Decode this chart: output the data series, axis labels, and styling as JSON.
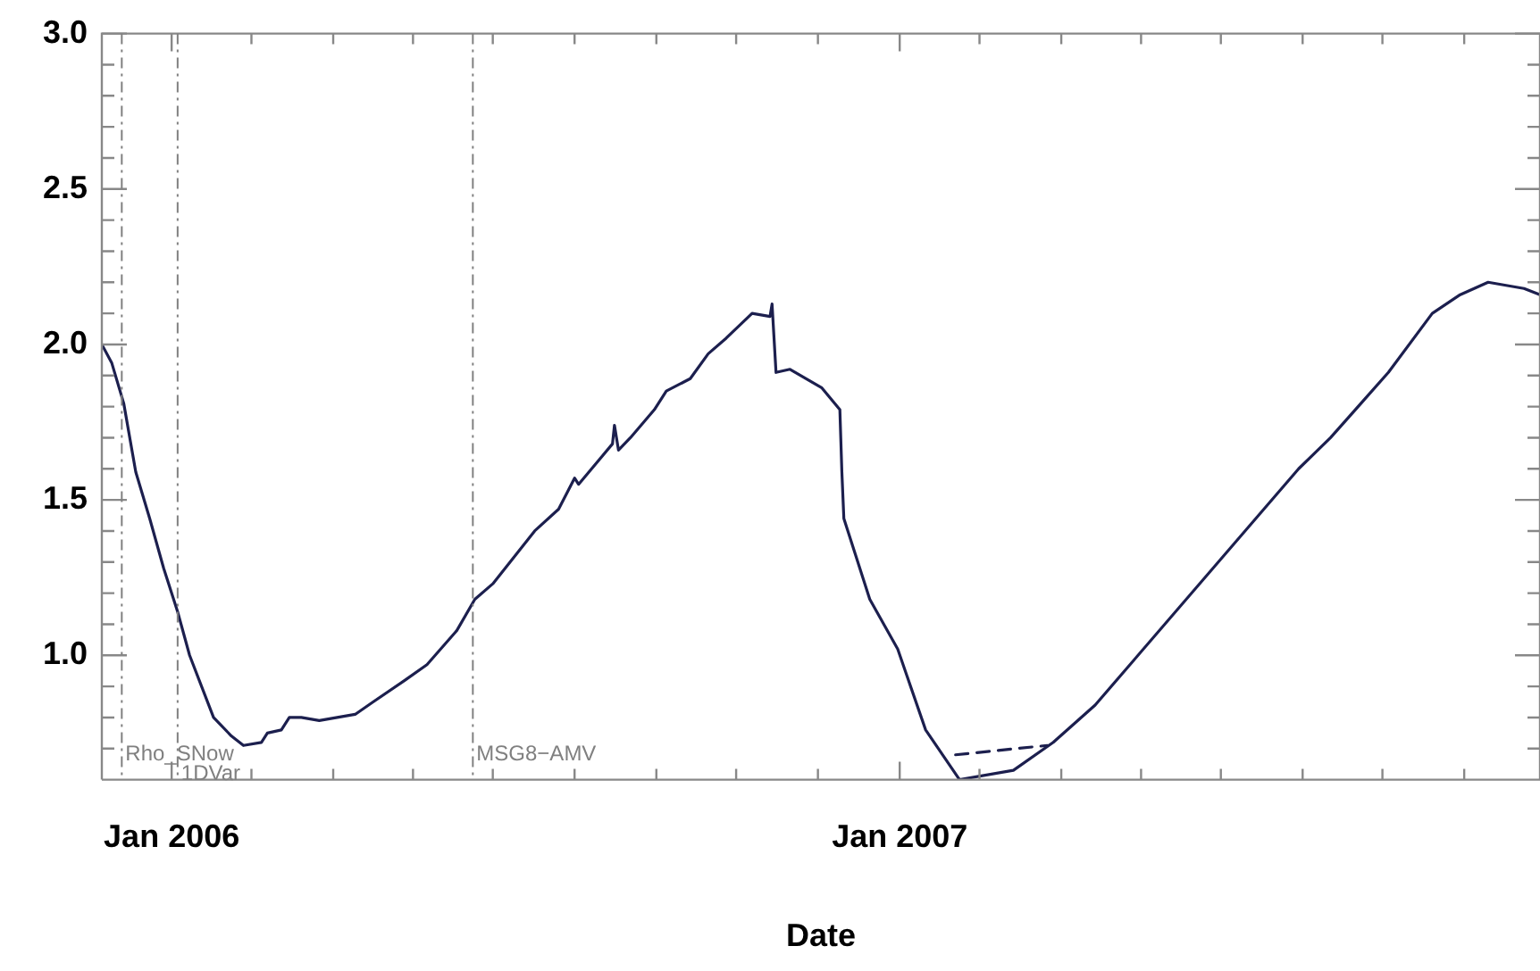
{
  "chart_data": {
    "type": "line",
    "xlabel": "Date",
    "grid": false,
    "legend": false,
    "marker": "none",
    "xlim": [
      "2005-11-27",
      "2007-11-18"
    ],
    "ylim": [
      0.6,
      3.0
    ],
    "xticks": [
      {
        "value": "2006-01-01",
        "label": "Jan 2006"
      },
      {
        "value": "2006-02-10",
        "label": null
      },
      {
        "value": "2006-03-23",
        "label": null
      },
      {
        "value": "2006-05-02",
        "label": null
      },
      {
        "value": "2006-06-11",
        "label": null
      },
      {
        "value": "2006-07-22",
        "label": null
      },
      {
        "value": "2006-09-01",
        "label": null
      },
      {
        "value": "2006-10-11",
        "label": null
      },
      {
        "value": "2006-11-21",
        "label": null
      },
      {
        "value": "2007-01-01",
        "label": "Jan 2007"
      },
      {
        "value": "2007-02-10",
        "label": null
      },
      {
        "value": "2007-03-23",
        "label": null
      },
      {
        "value": "2007-05-02",
        "label": null
      },
      {
        "value": "2007-06-11",
        "label": null
      },
      {
        "value": "2007-07-22",
        "label": null
      },
      {
        "value": "2007-08-31",
        "label": null
      },
      {
        "value": "2007-10-11",
        "label": null
      }
    ],
    "yticks": [
      {
        "value": 0.7,
        "label": null
      },
      {
        "value": 0.8,
        "label": null
      },
      {
        "value": 0.9,
        "label": null
      },
      {
        "value": 1.0,
        "label": "1.0"
      },
      {
        "value": 1.1,
        "label": null
      },
      {
        "value": 1.2,
        "label": null
      },
      {
        "value": 1.3,
        "label": null
      },
      {
        "value": 1.4,
        "label": null
      },
      {
        "value": 1.5,
        "label": "1.5"
      },
      {
        "value": 1.6,
        "label": null
      },
      {
        "value": 1.7,
        "label": null
      },
      {
        "value": 1.8,
        "label": null
      },
      {
        "value": 1.9,
        "label": null
      },
      {
        "value": 2.0,
        "label": "2.0"
      },
      {
        "value": 2.1,
        "label": null
      },
      {
        "value": 2.2,
        "label": null
      },
      {
        "value": 2.3,
        "label": null
      },
      {
        "value": 2.4,
        "label": null
      },
      {
        "value": 2.5,
        "label": "2.5"
      },
      {
        "value": 2.6,
        "label": null
      },
      {
        "value": 2.7,
        "label": null
      },
      {
        "value": 2.8,
        "label": null
      },
      {
        "value": 2.9,
        "label": null
      },
      {
        "value": 3.0,
        "label": "3.0"
      }
    ],
    "ref_lines": [
      {
        "axis": "x",
        "value": "2005-12-07",
        "label": "Rho_SNow",
        "color": "#808080",
        "line_style": "dashdot"
      },
      {
        "axis": "x",
        "value": "2006-01-04",
        "label": "1DVar",
        "color": "#808080",
        "line_style": "dashdot"
      },
      {
        "axis": "x",
        "value": "2006-06-01",
        "label": "MSG8−AMV",
        "color": "#808080",
        "line_style": "dashdot"
      }
    ],
    "series": [
      {
        "color": "#1c1f4e",
        "line_style": "solid",
        "x": [
          "2005-11-27",
          "2005-12-02",
          "2005-12-08",
          "2005-12-14",
          "2005-12-21",
          "2005-12-28",
          "2006-01-04",
          "2006-01-10",
          "2006-01-22",
          "2006-01-31",
          "2006-02-06",
          "2006-02-15",
          "2006-02-18",
          "2006-02-25",
          "2006-03-01",
          "2006-03-07",
          "2006-03-16",
          "2006-04-03",
          "2006-04-12",
          "2006-04-28",
          "2006-05-09",
          "2006-05-24",
          "2006-06-02",
          "2006-06-11",
          "2006-07-02",
          "2006-07-14",
          "2006-07-22",
          "2006-07-24",
          "2006-08-10",
          "2006-08-11",
          "2006-08-13",
          "2006-08-19",
          "2006-08-31",
          "2006-09-06",
          "2006-09-18",
          "2006-09-27",
          "2006-10-06",
          "2006-10-19",
          "2006-10-28",
          "2006-10-29",
          "2006-10-31",
          "2006-11-07",
          "2006-11-23",
          "2006-12-02",
          "2006-12-03",
          "2006-12-04",
          "2006-12-17",
          "2006-12-31",
          "2007-01-14",
          "2007-01-31",
          "2007-02-27",
          "2007-03-19",
          "2007-04-09",
          "2007-07-20",
          "2007-08-05",
          "2007-09-03",
          "2007-09-25",
          "2007-10-09",
          "2007-10-23",
          "2007-11-10",
          "2007-11-18"
        ],
        "values": [
          2.0,
          1.94,
          1.81,
          1.59,
          1.44,
          1.28,
          1.14,
          1.0,
          0.8,
          0.74,
          0.71,
          0.72,
          0.75,
          0.76,
          0.8,
          0.8,
          0.79,
          0.81,
          0.85,
          0.92,
          0.97,
          1.08,
          1.18,
          1.23,
          1.4,
          1.47,
          1.57,
          1.55,
          1.68,
          1.74,
          1.66,
          1.7,
          1.79,
          1.85,
          1.89,
          1.97,
          2.02,
          2.1,
          2.09,
          2.13,
          1.91,
          1.92,
          1.86,
          1.79,
          1.59,
          1.44,
          1.18,
          1.02,
          0.76,
          0.6,
          0.63,
          0.72,
          0.84,
          1.6,
          1.7,
          1.91,
          2.1,
          2.16,
          2.2,
          2.18,
          2.16
        ]
      },
      {
        "type": "line",
        "color": "#1c1f4e",
        "line_style": "dashed",
        "x": [
          "2007-01-29",
          "2007-03-16"
        ],
        "values": [
          0.68,
          0.71
        ]
      }
    ]
  }
}
